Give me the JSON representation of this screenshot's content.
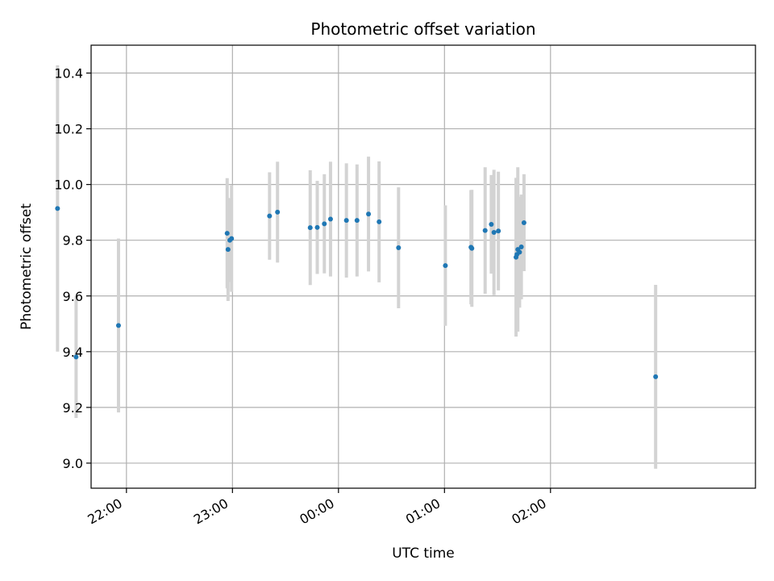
{
  "chart_data": {
    "type": "scatter",
    "title": "Photometric offset variation",
    "xlabel": "UTC time",
    "ylabel": "Photometric offset",
    "x_unit": "minutes after 00:00 UTC (negative = previous day)",
    "xlim": [
      -140,
      236
    ],
    "ylim": [
      8.91,
      10.5
    ],
    "grid": true,
    "x_ticks": [
      {
        "value": -120,
        "label": "22:00"
      },
      {
        "value": -60,
        "label": "23:00"
      },
      {
        "value": 0,
        "label": "00:00"
      },
      {
        "value": 60,
        "label": "01:00"
      },
      {
        "value": 120,
        "label": "02:00"
      }
    ],
    "y_ticks": [
      {
        "value": 9.0,
        "label": "9.0"
      },
      {
        "value": 9.2,
        "label": "9.2"
      },
      {
        "value": 9.4,
        "label": "9.4"
      },
      {
        "value": 9.6,
        "label": "9.6"
      },
      {
        "value": 9.8,
        "label": "9.8"
      },
      {
        "value": 10.0,
        "label": "10.0"
      },
      {
        "value": 10.2,
        "label": "10.2"
      },
      {
        "value": 10.4,
        "label": "10.4"
      }
    ],
    "colors": {
      "point": "#1f77b4",
      "errorbar": "#d3d3d3",
      "grid": "#b0b0b0",
      "axis": "#000000"
    },
    "points": [
      {
        "x": -159.0,
        "y": 9.914,
        "err": 0.514
      },
      {
        "x": -148.5,
        "y": 9.381,
        "err": 0.219
      },
      {
        "x": -124.5,
        "y": 9.494,
        "err": 0.312
      },
      {
        "x": -63.0,
        "y": 9.825,
        "err": 0.198
      },
      {
        "x": -62.5,
        "y": 9.767,
        "err": 0.185
      },
      {
        "x": -61.5,
        "y": 9.8,
        "err": 0.15
      },
      {
        "x": -60.5,
        "y": 9.806,
        "err": 0.191
      },
      {
        "x": -39.0,
        "y": 9.887,
        "err": 0.157
      },
      {
        "x": -34.5,
        "y": 9.901,
        "err": 0.181
      },
      {
        "x": -16.0,
        "y": 9.845,
        "err": 0.206
      },
      {
        "x": -12.0,
        "y": 9.846,
        "err": 0.167
      },
      {
        "x": -8.0,
        "y": 9.859,
        "err": 0.178
      },
      {
        "x": -4.5,
        "y": 9.876,
        "err": 0.206
      },
      {
        "x": 4.5,
        "y": 9.871,
        "err": 0.205
      },
      {
        "x": 10.5,
        "y": 9.871,
        "err": 0.201
      },
      {
        "x": 17.0,
        "y": 9.894,
        "err": 0.206
      },
      {
        "x": 23.0,
        "y": 9.866,
        "err": 0.217
      },
      {
        "x": 34.0,
        "y": 9.773,
        "err": 0.217
      },
      {
        "x": 60.5,
        "y": 9.709,
        "err": 0.216
      },
      {
        "x": 75.0,
        "y": 9.775,
        "err": 0.205
      },
      {
        "x": 75.5,
        "y": 9.771,
        "err": 0.21
      },
      {
        "x": 83.0,
        "y": 9.835,
        "err": 0.227
      },
      {
        "x": 86.5,
        "y": 9.857,
        "err": 0.177
      },
      {
        "x": 88.0,
        "y": 9.828,
        "err": 0.225
      },
      {
        "x": 90.5,
        "y": 9.833,
        "err": 0.213
      },
      {
        "x": 100.5,
        "y": 9.739,
        "err": 0.285
      },
      {
        "x": 101.0,
        "y": 9.749,
        "err": 0.268
      },
      {
        "x": 101.5,
        "y": 9.767,
        "err": 0.295
      },
      {
        "x": 102.5,
        "y": 9.757,
        "err": 0.199
      },
      {
        "x": 103.5,
        "y": 9.776,
        "err": 0.188
      },
      {
        "x": 105.0,
        "y": 9.863,
        "err": 0.174
      },
      {
        "x": 179.5,
        "y": 9.31,
        "err": 0.33
      }
    ]
  }
}
